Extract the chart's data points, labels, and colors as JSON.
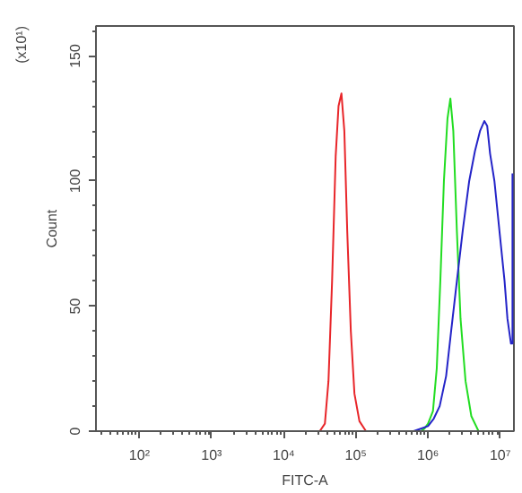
{
  "chart_data": {
    "type": "line",
    "xlabel": "FITC-A",
    "ylabel": "Count",
    "annotations": [
      "(x10¹)"
    ],
    "log": "x",
    "grid": false,
    "marker": "none",
    "line_style": "solid",
    "xlim": [
      25,
      15500000
    ],
    "xticks": [
      {
        "value": 100,
        "label": "10²"
      },
      {
        "value": 1000,
        "label": "10³"
      },
      {
        "value": 10000,
        "label": "10⁴"
      },
      {
        "value": 100000,
        "label": "10⁵"
      },
      {
        "value": 1000000,
        "label": "10⁶"
      },
      {
        "value": 10000000,
        "label": "10⁷"
      }
    ],
    "ylim": [
      0,
      162
    ],
    "yticks": [
      0,
      50,
      100,
      150
    ],
    "series": [
      {
        "color": "#e8262a",
        "x": [
          31600,
          37200,
          41700,
          46800,
          52500,
          57500,
          63100,
          69200,
          75900,
          85100,
          95500,
          112000,
          138000
        ],
        "values": [
          0,
          3,
          20,
          60,
          110,
          130,
          135,
          120,
          80,
          40,
          15,
          4,
          0
        ]
      },
      {
        "color": "#22dd22",
        "x": [
          794000,
          891000,
          1000000,
          1170000,
          1320000,
          1480000,
          1660000,
          1860000,
          2040000,
          2240000,
          2510000,
          2820000,
          3310000,
          3980000,
          5010000
        ],
        "values": [
          0,
          1,
          3,
          8,
          25,
          60,
          100,
          125,
          133,
          120,
          80,
          45,
          20,
          6,
          0
        ]
      },
      {
        "color": "#2424c8",
        "x": [
          631000,
          794000,
          1000000,
          1200000,
          1450000,
          1780000,
          2090000,
          2510000,
          3020000,
          3720000,
          4470000,
          5250000,
          6030000,
          6610000,
          7240000,
          8320000,
          9770000,
          11500000,
          12600000,
          14100000,
          14800000,
          14800000
        ],
        "values": [
          0,
          1,
          2,
          5,
          10,
          22,
          40,
          60,
          80,
          100,
          112,
          120,
          124,
          122,
          111,
          100,
          80,
          60,
          45,
          35,
          35,
          103
        ]
      }
    ]
  }
}
